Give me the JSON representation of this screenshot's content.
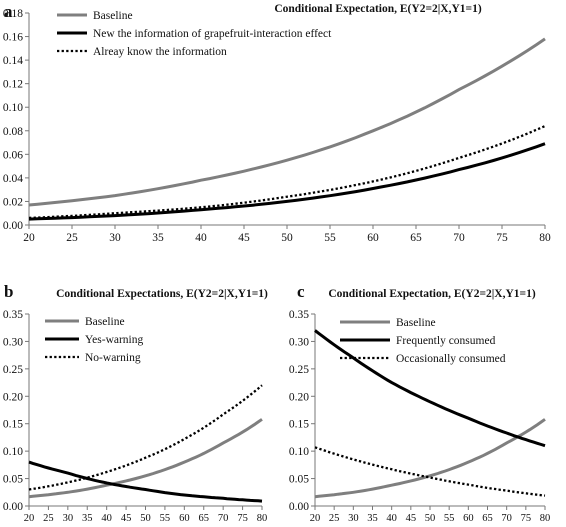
{
  "panels": [
    {
      "label": "a",
      "chart_data": {
        "type": "line",
        "title": "Conditional Expectation, E(Y2=2|X,Y1=1)",
        "xlabel": "",
        "ylabel": "",
        "xlim": [
          20,
          80
        ],
        "ylim": [
          0,
          0.18
        ],
        "xticks": [
          20,
          25,
          30,
          35,
          40,
          45,
          50,
          55,
          60,
          65,
          70,
          75,
          80
        ],
        "yticks": [
          "0.00",
          "0.02",
          "0.04",
          "0.06",
          "0.08",
          "0.10",
          "0.12",
          "0.14",
          "0.16",
          "0.18"
        ],
        "legend": "top-left",
        "series": [
          {
            "name": "Baseline",
            "color": "#7f7f7f",
            "style": "solid",
            "x": [
              20,
              30,
              40,
              50,
              60,
              70,
              80
            ],
            "values": [
              0.017,
              0.025,
              0.038,
              0.055,
              0.08,
              0.115,
              0.158
            ]
          },
          {
            "name": "New the information of grapefruit-interaction effect",
            "color": "#000000",
            "style": "solid",
            "x": [
              20,
              30,
              40,
              50,
              60,
              70,
              80
            ],
            "values": [
              0.005,
              0.008,
              0.013,
              0.02,
              0.031,
              0.047,
              0.069
            ]
          },
          {
            "name": "Alreay know the information",
            "color": "#000000",
            "style": "dotted",
            "x": [
              20,
              30,
              40,
              50,
              60,
              70,
              80
            ],
            "values": [
              0.006,
              0.01,
              0.015,
              0.024,
              0.037,
              0.057,
              0.084
            ]
          }
        ]
      }
    },
    {
      "label": "b",
      "chart_data": {
        "type": "line",
        "title": "Conditional Expectations, E(Y2=2|X,Y1=1)",
        "xlabel": "",
        "ylabel": "",
        "xlim": [
          20,
          80
        ],
        "ylim": [
          0,
          0.35
        ],
        "xticks": [
          20,
          25,
          30,
          35,
          40,
          45,
          50,
          55,
          60,
          65,
          70,
          75,
          80
        ],
        "yticks": [
          "0.00",
          "0.05",
          "0.10",
          "0.15",
          "0.20",
          "0.25",
          "0.30",
          "0.35"
        ],
        "legend": "top-left",
        "series": [
          {
            "name": "Baseline",
            "color": "#7f7f7f",
            "style": "solid",
            "x": [
              20,
              30,
              40,
              50,
              60,
              70,
              80
            ],
            "values": [
              0.017,
              0.025,
              0.038,
              0.055,
              0.08,
              0.115,
              0.158
            ]
          },
          {
            "name": "Yes-warning",
            "color": "#000000",
            "style": "solid",
            "x": [
              20,
              30,
              40,
              50,
              60,
              70,
              80
            ],
            "values": [
              0.08,
              0.06,
              0.042,
              0.03,
              0.02,
              0.014,
              0.009
            ]
          },
          {
            "name": "No-warning",
            "color": "#000000",
            "style": "dotted",
            "x": [
              20,
              30,
              40,
              50,
              60,
              70,
              80
            ],
            "values": [
              0.03,
              0.043,
              0.062,
              0.088,
              0.122,
              0.167,
              0.22
            ]
          }
        ]
      }
    },
    {
      "label": "c",
      "chart_data": {
        "type": "line",
        "title": "Conditional Expectation, E(Y2=2|X,Y1=1)",
        "xlabel": "",
        "ylabel": "",
        "xlim": [
          20,
          80
        ],
        "ylim": [
          0,
          0.35
        ],
        "xticks": [
          20,
          25,
          30,
          35,
          40,
          45,
          50,
          55,
          60,
          65,
          70,
          75,
          80
        ],
        "yticks": [
          "0.00",
          "0.05",
          "0.10",
          "0.15",
          "0.20",
          "0.25",
          "0.30",
          "0.35"
        ],
        "legend": "top-right",
        "series": [
          {
            "name": "Baseline",
            "color": "#7f7f7f",
            "style": "solid",
            "x": [
              20,
              30,
              40,
              50,
              60,
              70,
              80
            ],
            "values": [
              0.017,
              0.025,
              0.038,
              0.055,
              0.08,
              0.115,
              0.158
            ]
          },
          {
            "name": "Frequently consumed",
            "color": "#000000",
            "style": "solid",
            "x": [
              20,
              30,
              40,
              50,
              60,
              70,
              80
            ],
            "values": [
              0.32,
              0.27,
              0.225,
              0.19,
              0.16,
              0.133,
              0.11
            ]
          },
          {
            "name": "Occasionally consumed",
            "color": "#000000",
            "style": "dotted",
            "x": [
              20,
              30,
              40,
              50,
              60,
              70,
              80
            ],
            "values": [
              0.107,
              0.085,
              0.067,
              0.052,
              0.039,
              0.028,
              0.019
            ]
          }
        ]
      }
    }
  ]
}
